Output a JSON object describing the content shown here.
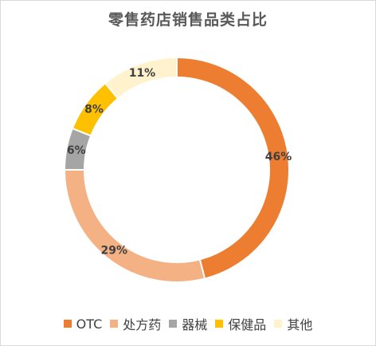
{
  "chart_data": {
    "type": "pie",
    "variant": "doughnut",
    "title": "零售药店销售品类占比",
    "categories": [
      "OTC",
      "处方药",
      "器械",
      "保健品",
      "其他"
    ],
    "values": [
      46,
      29,
      6,
      8,
      11
    ],
    "labels": [
      "46%",
      "29%",
      "6%",
      "8%",
      "11%"
    ],
    "colors": [
      "#ED7D31",
      "#F4B183",
      "#A5A5A5",
      "#FFC000",
      "#FFF2CC"
    ],
    "legend_position": "bottom"
  }
}
